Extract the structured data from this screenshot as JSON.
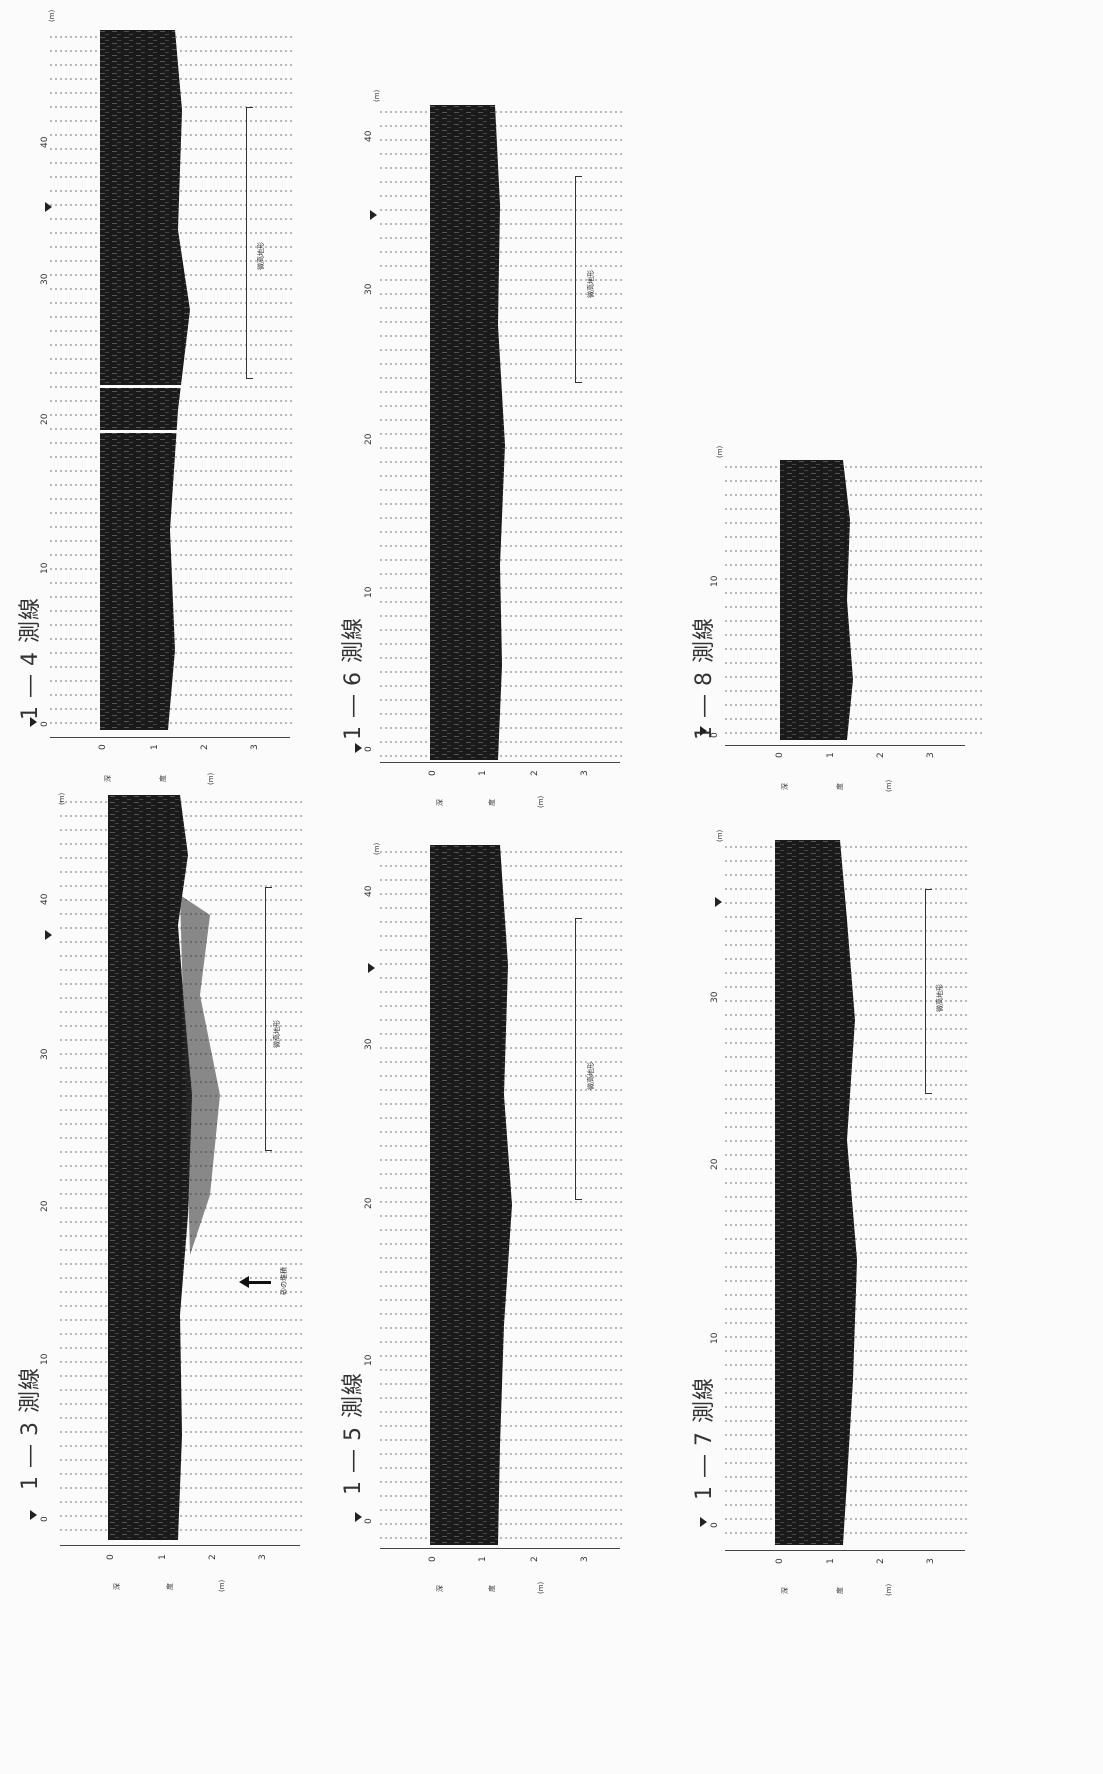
{
  "panels": [
    {
      "id": "1-3",
      "title": "1 ― 3 測線",
      "distance_ticks": [
        "0",
        "10",
        "20",
        "30",
        "40"
      ],
      "depth_ticks": [
        "0",
        "1",
        "2",
        "3"
      ],
      "depth_label": [
        "深",
        "度",
        "(m)"
      ],
      "distance_unit": "(m)",
      "annotations": [
        "微高地形",
        "砂の堆積"
      ]
    },
    {
      "id": "1-4",
      "title": "1 ― 4 測線",
      "distance_ticks": [
        "0",
        "10",
        "20",
        "30",
        "40"
      ],
      "depth_ticks": [
        "0",
        "1",
        "2",
        "3"
      ],
      "depth_label": [
        "深",
        "度",
        "(m)"
      ],
      "distance_unit": "(m)",
      "annotations": [
        "微高地形"
      ]
    },
    {
      "id": "1-5",
      "title": "1 ― 5 測線",
      "distance_ticks": [
        "0",
        "10",
        "20",
        "30",
        "40"
      ],
      "depth_ticks": [
        "0",
        "1",
        "2",
        "3"
      ],
      "depth_label": [
        "深",
        "度",
        "(m)"
      ],
      "distance_unit": "(m)",
      "annotations": [
        "微高地形"
      ]
    },
    {
      "id": "1-6",
      "title": "1 ― 6 測線",
      "distance_ticks": [
        "0",
        "10",
        "20",
        "30",
        "40"
      ],
      "depth_ticks": [
        "0",
        "1",
        "2",
        "3"
      ],
      "depth_label": [
        "深",
        "度",
        "(m)"
      ],
      "distance_unit": "(m)",
      "annotations": [
        "微高地形"
      ]
    },
    {
      "id": "1-7",
      "title": "1 ― 7 測線",
      "distance_ticks": [
        "0",
        "10",
        "20",
        "30"
      ],
      "depth_ticks": [
        "0",
        "1",
        "2",
        "3"
      ],
      "depth_label": [
        "深",
        "度",
        "(m)"
      ],
      "distance_unit": "(m)",
      "annotations": [
        "微高地形"
      ]
    },
    {
      "id": "1-8",
      "title": "1 ― 8 測線",
      "distance_ticks": [
        "0",
        "10"
      ],
      "depth_ticks": [
        "0",
        "1",
        "2",
        "3"
      ],
      "depth_label": [
        "深",
        "度",
        "(m)"
      ],
      "distance_unit": "(m)",
      "annotations": []
    }
  ]
}
